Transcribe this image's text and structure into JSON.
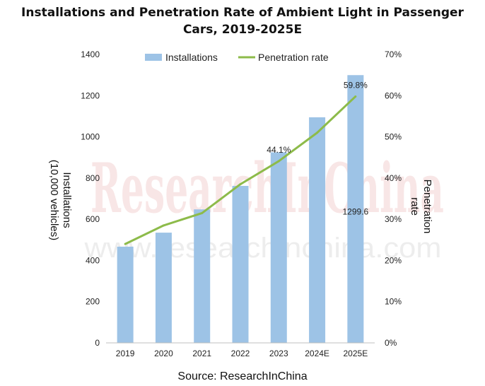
{
  "chart_data": {
    "type": "bar",
    "title": "Installations and Penetration Rate of Ambient Light in Passenger Cars, 2019-2025E",
    "categories": [
      "2019",
      "2020",
      "2021",
      "2022",
      "2023",
      "2024E",
      "2025E"
    ],
    "series": [
      {
        "name": "Installations",
        "type": "bar",
        "axis": "left",
        "color": "#9dc3e6",
        "values": [
          467,
          535,
          648,
          762,
          925,
          1095,
          1299.6
        ]
      },
      {
        "name": "Penetration rate",
        "type": "line",
        "axis": "right",
        "color": "#8dbb4a",
        "values": [
          24.0,
          28.5,
          31.5,
          38.5,
          44.1,
          51.0,
          59.8
        ]
      }
    ],
    "ylabel": "Installations\n(10,000 vehicles)",
    "y2label": "Penetration\nrate",
    "ylim": [
      0,
      1400
    ],
    "yticks": [
      "0",
      "200",
      "400",
      "600",
      "800",
      "1000",
      "1200",
      "1400"
    ],
    "y2lim": [
      0,
      70
    ],
    "y2ticks": [
      "0%",
      "10%",
      "20%",
      "30%",
      "40%",
      "50%",
      "60%",
      "70%"
    ],
    "data_labels": [
      {
        "series": 0,
        "index": 6,
        "text": "1299.6"
      },
      {
        "series": 1,
        "index": 4,
        "text": "44.1%"
      },
      {
        "series": 1,
        "index": 6,
        "text": "59.8%"
      }
    ],
    "legend_position": "top-center",
    "grid": false
  },
  "watermark": {
    "big": "ResearchInChina",
    "small": "www.researchinchina.com"
  },
  "source": "Source: ResearchInChina"
}
